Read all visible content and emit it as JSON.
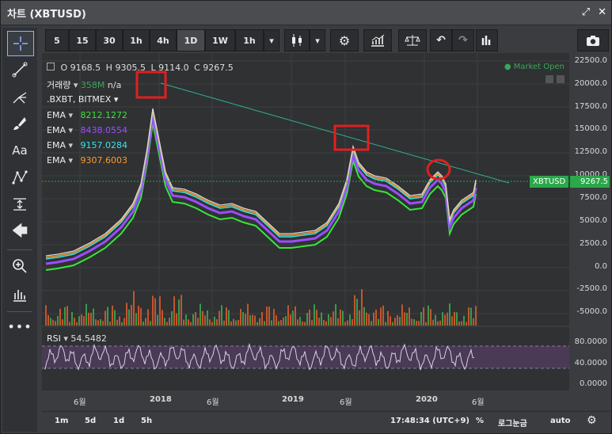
{
  "window": {
    "title": "차트 (XBTUSD)"
  },
  "toolbar": {
    "intervals": [
      "5",
      "15",
      "30",
      "1h",
      "4h",
      "1D",
      "1W"
    ],
    "secondary_interval": "1h"
  },
  "ohlc": {
    "o_label": "O",
    "o": "9168.5",
    "h_label": "H",
    "h": "9305.5",
    "l_label": "L",
    "l": "9114.0",
    "c_label": "C",
    "c": "9267.5"
  },
  "market_status": "● Market Open",
  "volume": {
    "label": "거래량",
    "value": "358M",
    "extra": "n/a"
  },
  "index": {
    "label": ".BXBT, BITMEX"
  },
  "emas": [
    {
      "label": "EMA",
      "value": "8212.1272",
      "color": "#39e639"
    },
    {
      "label": "EMA",
      "value": "8438.0554",
      "color": "#9b4dff"
    },
    {
      "label": "EMA",
      "value": "9157.0284",
      "color": "#38e6e6"
    },
    {
      "label": "EMA",
      "value": "9307.6003",
      "color": "#ff9a2e"
    }
  ],
  "price_axis": [
    "22500.0",
    "20000.0",
    "17500.0",
    "15000.0",
    "12500.0",
    "10000.0",
    "7500.0",
    "5000.0",
    "2500.0",
    "0.0",
    "-2500.0",
    "-5000.0"
  ],
  "price_tag": {
    "symbol": "XBTUSD",
    "value": "9267.5"
  },
  "rsi": {
    "label": "RSI",
    "value": "54.5482",
    "axis": [
      "80.0000",
      "40.0000",
      "0.0000"
    ]
  },
  "time_axis": [
    "6월",
    "2018",
    "6월",
    "2019",
    "6월",
    "2020",
    "6월"
  ],
  "bottom": {
    "ranges": [
      "1m",
      "5d",
      "1d",
      "5h"
    ],
    "clock": "17:48:34 (UTC+9)",
    "percent": "%",
    "log": "로그눈금",
    "auto": "auto"
  },
  "colors": {
    "ema1": "#39e639",
    "ema2": "#9b4dff",
    "ema3": "#38e6e6",
    "ema4": "#ff9a2e",
    "trend": "#2fb39a",
    "marker": "#e02020",
    "tag": "#2aa84a"
  }
}
